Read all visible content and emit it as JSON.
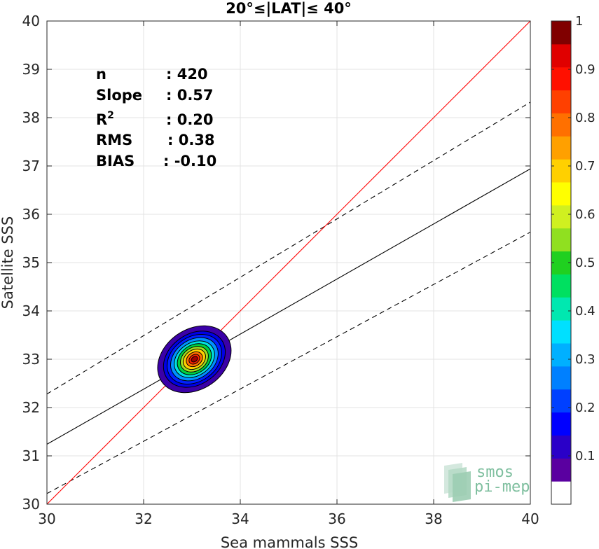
{
  "chart_data": {
    "type": "scatter",
    "title": "20°≤|LAT|≤ 40°",
    "xlabel": "Sea mammals SSS",
    "ylabel": "Satellite SSS",
    "xlim": [
      30,
      40
    ],
    "ylim": [
      30,
      40
    ],
    "xticks": [
      "30",
      "32",
      "34",
      "36",
      "38",
      "40"
    ],
    "yticks": [
      "30",
      "31",
      "32",
      "33",
      "34",
      "35",
      "36",
      "37",
      "38",
      "39",
      "40"
    ],
    "grid": true,
    "stats": [
      {
        "label": "n",
        "value": ": 420"
      },
      {
        "label": "Slope",
        "value": ": 0.57"
      },
      {
        "label": "R",
        "sup": "2",
        "value": ": 0.20"
      },
      {
        "label": "RMS",
        "value": ": 0.38"
      },
      {
        "label": "BIAS",
        "value": ": -0.10"
      }
    ],
    "lines": {
      "identity": {
        "x": [
          30,
          40
        ],
        "y": [
          30,
          40
        ],
        "color": "#ff0000"
      },
      "fit": {
        "x": [
          30,
          40
        ],
        "y": [
          31.24,
          36.94
        ],
        "color": "#000000"
      },
      "fit_upper": {
        "x": [
          30,
          40
        ],
        "y": [
          32.28,
          38.32
        ],
        "color": "#000000",
        "dash": true
      },
      "fit_lower": {
        "x": [
          30,
          40
        ],
        "y": [
          30.22,
          35.63
        ],
        "color": "#000000",
        "dash": true
      }
    },
    "density": {
      "center": [
        33.05,
        33.0
      ],
      "levels": [
        {
          "level": 0.05,
          "color": "#3b00a8",
          "rx": 0.62,
          "ry": 0.82
        },
        {
          "level": 0.15,
          "color": "#0000e6",
          "rx": 0.52,
          "ry": 0.69
        },
        {
          "level": 0.2,
          "color": "#0020ff",
          "rx": 0.46,
          "ry": 0.61
        },
        {
          "level": 0.3,
          "color": "#0090ff",
          "rx": 0.4,
          "ry": 0.53
        },
        {
          "level": 0.4,
          "color": "#00e0e0",
          "rx": 0.34,
          "ry": 0.45
        },
        {
          "level": 0.5,
          "color": "#00d040",
          "rx": 0.29,
          "ry": 0.38
        },
        {
          "level": 0.6,
          "color": "#a0e020",
          "rx": 0.24,
          "ry": 0.31
        },
        {
          "level": 0.7,
          "color": "#ffd000",
          "rx": 0.19,
          "ry": 0.25
        },
        {
          "level": 0.8,
          "color": "#ff7000",
          "rx": 0.14,
          "ry": 0.18
        },
        {
          "level": 0.9,
          "color": "#ff2000",
          "rx": 0.09,
          "ry": 0.12
        },
        {
          "level": 1.0,
          "color": "#a00000",
          "rx": 0.05,
          "ry": 0.07
        }
      ]
    },
    "colorbar": {
      "range": [
        0,
        1
      ],
      "ticks": [
        "0.1",
        "0.2",
        "0.3",
        "0.4",
        "0.5",
        "0.6",
        "0.7",
        "0.8",
        "0.9",
        "1"
      ],
      "colors": [
        "#ffffff",
        "#5a00a0",
        "#2a00c8",
        "#0000ff",
        "#0040ff",
        "#0080ff",
        "#00b0ff",
        "#00e0ff",
        "#00e8b0",
        "#00e060",
        "#20d020",
        "#90e020",
        "#d0f020",
        "#ffff00",
        "#ffd000",
        "#ffa000",
        "#ff7000",
        "#ff4000",
        "#ff1000",
        "#e00000",
        "#800000"
      ]
    },
    "logo": {
      "line1": "smos",
      "line2": "pi-mep"
    }
  }
}
